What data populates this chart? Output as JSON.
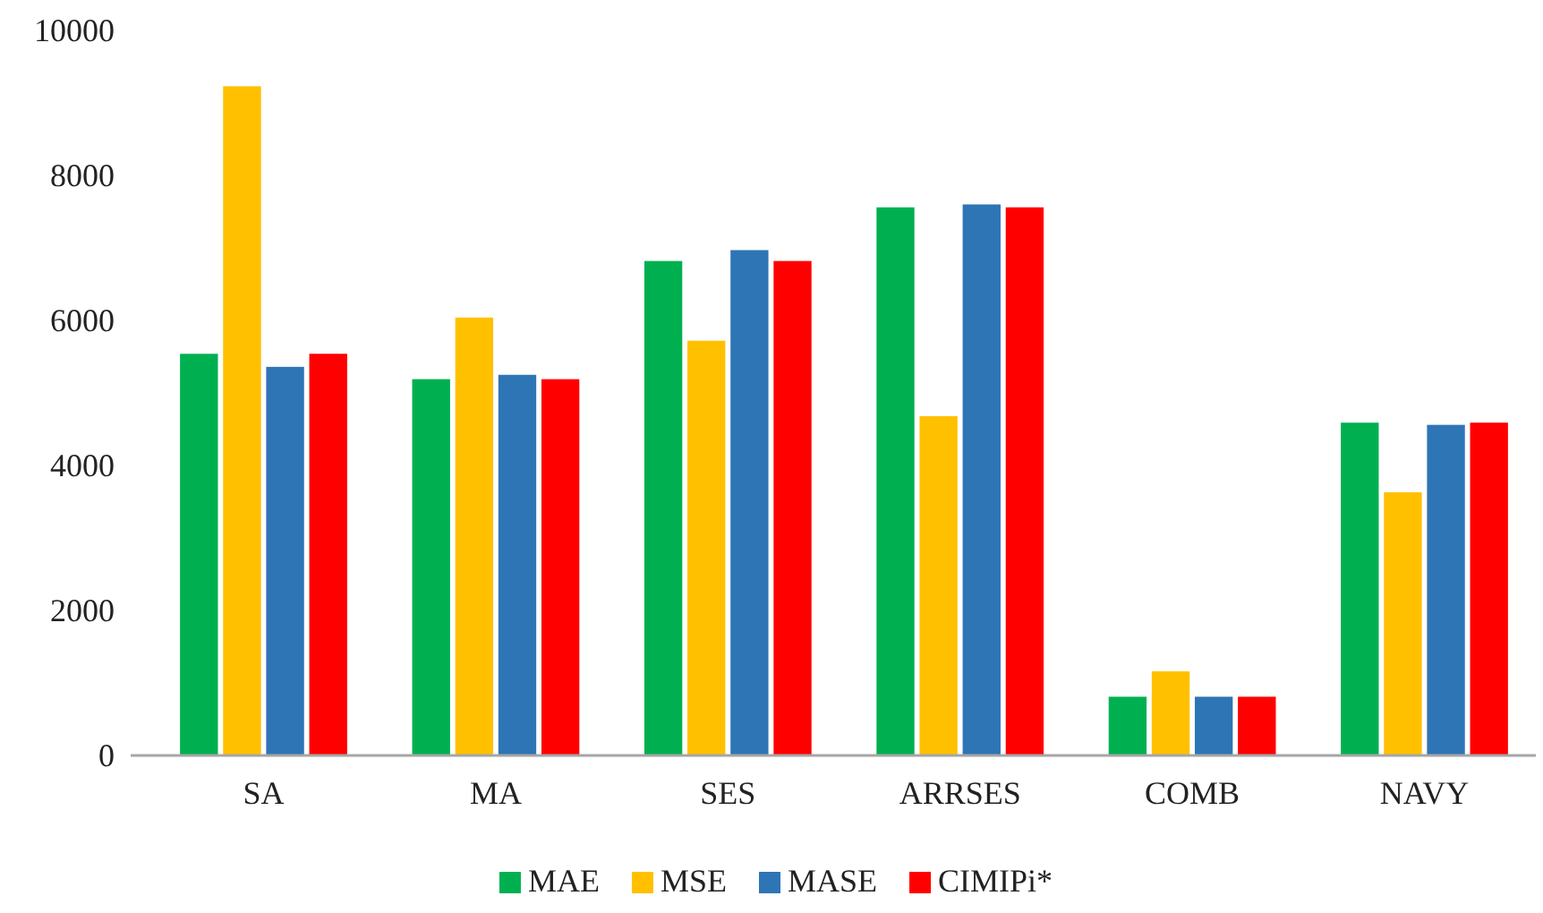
{
  "chart_data": {
    "type": "bar",
    "categories": [
      "SA",
      "MA",
      "SES",
      "ARRSES",
      "COMB",
      "NAVY"
    ],
    "series": [
      {
        "name": "MAE",
        "color": "#00b050",
        "values": [
          5540,
          5190,
          6820,
          7560,
          810,
          4590
        ]
      },
      {
        "name": "MSE",
        "color": "#ffc000",
        "values": [
          9230,
          6040,
          5720,
          4680,
          1160,
          3630
        ]
      },
      {
        "name": "MASE",
        "color": "#2e75b6",
        "values": [
          5360,
          5250,
          6970,
          7600,
          810,
          4560
        ]
      },
      {
        "name": "CIMIPi*",
        "color": "#ff0000",
        "values": [
          5540,
          5190,
          6820,
          7560,
          810,
          4590
        ]
      }
    ],
    "ylim": [
      0,
      10000
    ],
    "yticks": [
      0,
      2000,
      4000,
      6000,
      8000,
      10000
    ],
    "grid": false,
    "legend": "bottom"
  }
}
